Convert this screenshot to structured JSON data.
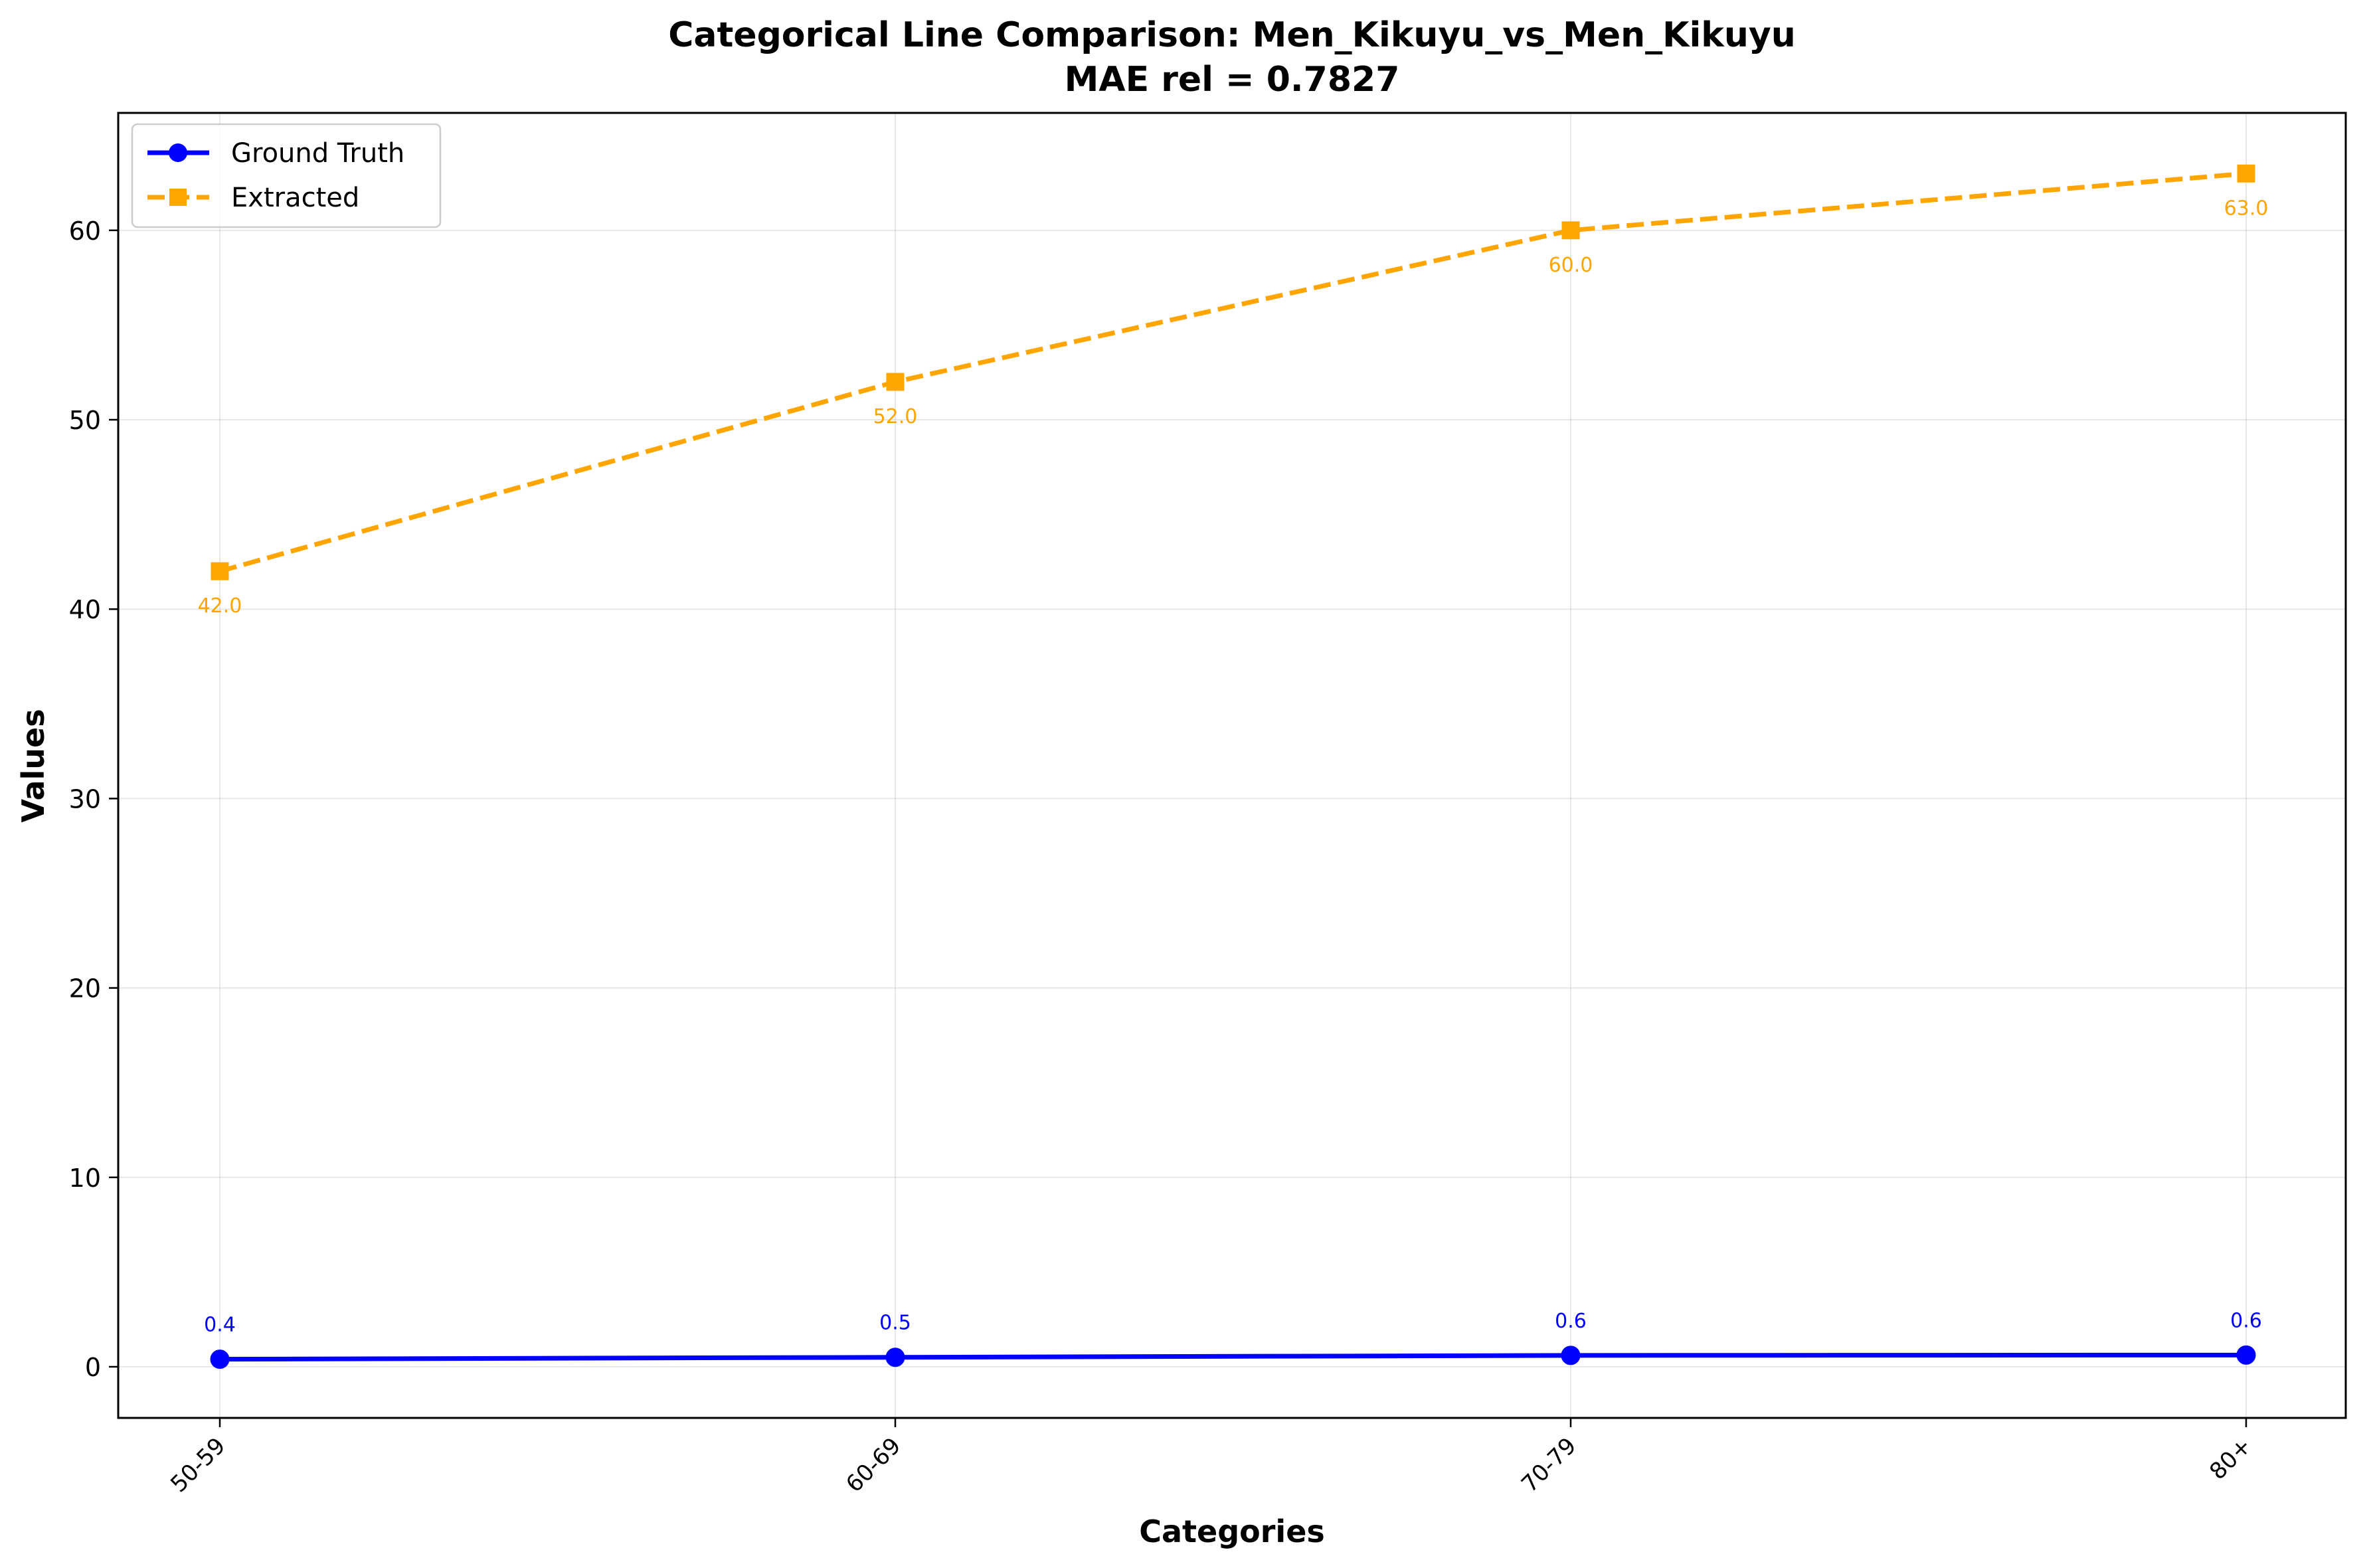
{
  "chart_data": {
    "type": "line",
    "title_line1": "Categorical Line Comparison: Men_Kikuyu_vs_Men_Kikuyu",
    "title_line2": "MAE rel = 0.7827",
    "xlabel": "Categories",
    "ylabel": "Values",
    "categories": [
      "50-59",
      "60-69",
      "70-79",
      "80+"
    ],
    "ylim": [
      -2.7,
      66.2
    ],
    "yticks": [
      0,
      10,
      20,
      30,
      40,
      50,
      60
    ],
    "grid": true,
    "legend_position": "upper-left",
    "series": [
      {
        "name": "Ground Truth",
        "values": [
          0.4,
          0.5,
          0.6,
          0.62
        ],
        "labels": [
          "0.4",
          "0.5",
          "0.6",
          "0.6"
        ],
        "color": "#0000ff",
        "marker": "circle",
        "line_style": "solid"
      },
      {
        "name": "Extracted",
        "values": [
          42.0,
          52.0,
          60.0,
          63.0
        ],
        "labels": [
          "42.0",
          "52.0",
          "60.0",
          "63.0"
        ],
        "color": "#ffa500",
        "marker": "square",
        "line_style": "dashed"
      }
    ]
  }
}
